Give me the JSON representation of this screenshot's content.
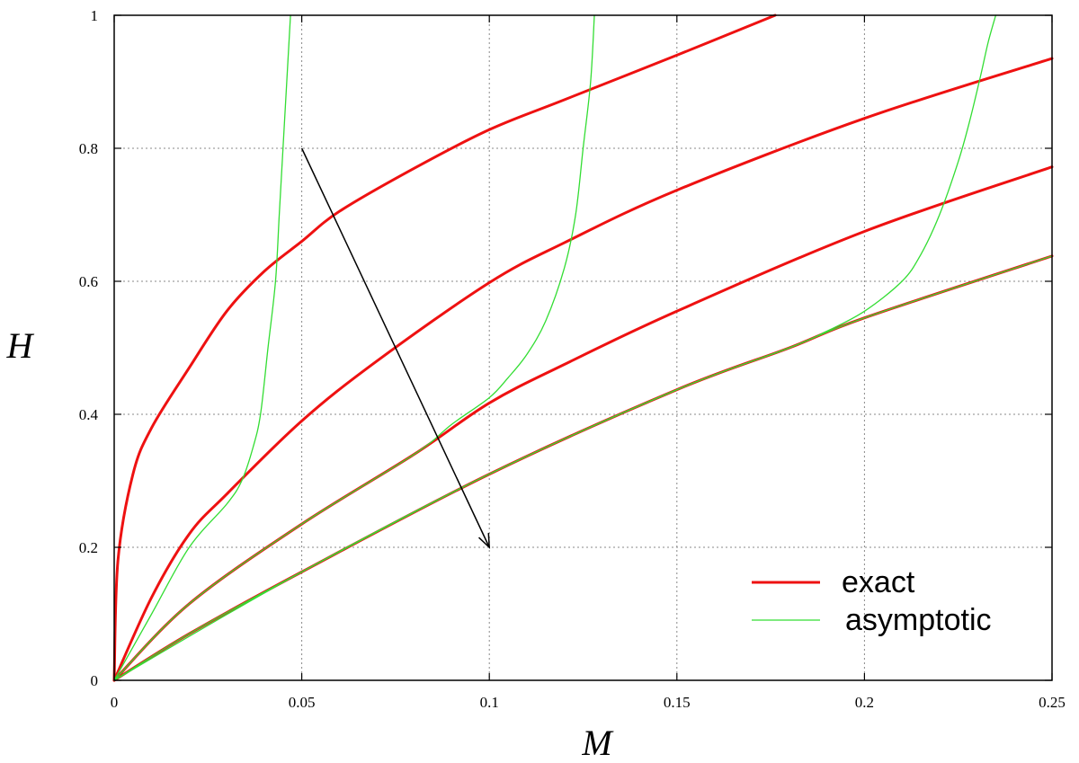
{
  "chart_data": {
    "type": "line",
    "xlabel": "M",
    "ylabel": "H",
    "xlim": [
      0,
      0.25
    ],
    "ylim": [
      0,
      1
    ],
    "xticks": [
      "0",
      "0.05",
      "0.1",
      "0.15",
      "0.2",
      "0.25"
    ],
    "yticks": [
      "0",
      "0.2",
      "0.4",
      "0.6",
      "0.8",
      "1"
    ],
    "grid": true,
    "legend": {
      "placement": "bottom-right",
      "entries": [
        "exact",
        "asymptotic"
      ]
    },
    "colors": {
      "exact": "#ee1111",
      "asymptotic": "#33dd33",
      "arrow": "#000000",
      "grid": "#888888"
    },
    "series": [
      {
        "name": "exact",
        "curve": 1,
        "x": [
          0,
          0.001,
          0.005,
          0.01,
          0.02,
          0.03,
          0.04,
          0.05,
          0.06,
          0.08,
          0.1,
          0.12,
          0.15,
          0.1762
        ],
        "y": [
          0,
          0.18,
          0.31,
          0.38,
          0.47,
          0.555,
          0.615,
          0.66,
          0.705,
          0.77,
          0.828,
          0.873,
          0.94,
          1.0
        ]
      },
      {
        "name": "exact",
        "curve": 2,
        "x": [
          0,
          0.01,
          0.02,
          0.03,
          0.05,
          0.07,
          0.1,
          0.12,
          0.15,
          0.2,
          0.25
        ],
        "y": [
          0,
          0.125,
          0.22,
          0.28,
          0.39,
          0.48,
          0.598,
          0.658,
          0.737,
          0.845,
          0.935
        ]
      },
      {
        "name": "exact",
        "curve": 3,
        "x": [
          0,
          0.02,
          0.05,
          0.08,
          0.1,
          0.12,
          0.15,
          0.2,
          0.25
        ],
        "y": [
          0,
          0.115,
          0.235,
          0.34,
          0.417,
          0.475,
          0.555,
          0.675,
          0.772
        ]
      },
      {
        "name": "exact",
        "curve": 4,
        "x": [
          0,
          0.02,
          0.05,
          0.1,
          0.15,
          0.18,
          0.2,
          0.25
        ],
        "y": [
          0,
          0.07,
          0.163,
          0.31,
          0.437,
          0.5,
          0.545,
          0.638
        ]
      },
      {
        "name": "asymptotic",
        "curve": 1,
        "x": [
          0,
          0.01,
          0.02,
          0.03,
          0.034,
          0.037,
          0.039,
          0.041,
          0.043,
          0.044,
          0.045,
          0.046,
          0.047
        ],
        "y": [
          0,
          0.1,
          0.2,
          0.265,
          0.3,
          0.35,
          0.4,
          0.5,
          0.6,
          0.7,
          0.8,
          0.9,
          1.0
        ]
      },
      {
        "name": "asymptotic",
        "curve": 2,
        "x": [
          0,
          0.02,
          0.05,
          0.08,
          0.09,
          0.1,
          0.105,
          0.11,
          0.115,
          0.12,
          0.123,
          0.125,
          0.127,
          0.128
        ],
        "y": [
          0,
          0.115,
          0.235,
          0.34,
          0.385,
          0.425,
          0.455,
          0.49,
          0.54,
          0.62,
          0.7,
          0.8,
          0.9,
          1.0
        ]
      },
      {
        "name": "asymptotic",
        "curve": 3,
        "x": [
          0,
          0.05,
          0.1,
          0.15,
          0.18,
          0.19,
          0.2,
          0.21,
          0.215,
          0.22,
          0.225,
          0.228,
          0.231,
          0.233,
          0.235
        ],
        "y": [
          0,
          0.163,
          0.31,
          0.437,
          0.5,
          0.525,
          0.555,
          0.6,
          0.64,
          0.7,
          0.78,
          0.84,
          0.91,
          0.96,
          1.0
        ]
      },
      {
        "name": "asymptotic",
        "curve": 4,
        "x": [
          0,
          0.02,
          0.05,
          0.1,
          0.15,
          0.18,
          0.2,
          0.25
        ],
        "y": [
          0,
          0.07,
          0.163,
          0.31,
          0.437,
          0.5,
          0.545,
          0.638
        ]
      }
    ],
    "arrow": {
      "from": [
        0.05,
        0.8
      ],
      "to": [
        0.1,
        0.2
      ]
    }
  }
}
